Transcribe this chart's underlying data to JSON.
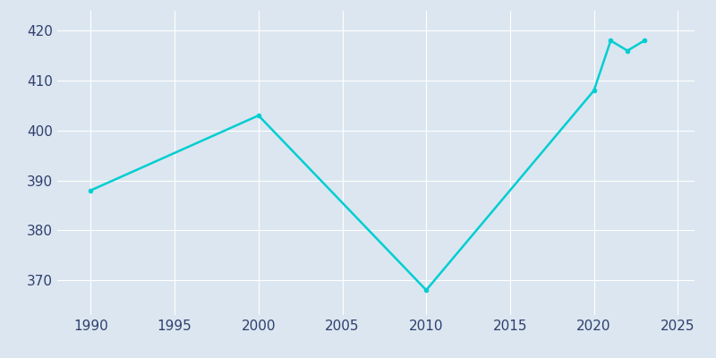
{
  "years": [
    1990,
    2000,
    2010,
    2020,
    2021,
    2022,
    2023
  ],
  "population": [
    388,
    403,
    368,
    408,
    418,
    416,
    418
  ],
  "line_color": "#00CED1",
  "bg_color": "#dce6f0",
  "xlim": [
    1988,
    2026
  ],
  "ylim": [
    363,
    424
  ],
  "xticks": [
    1990,
    1995,
    2000,
    2005,
    2010,
    2015,
    2020,
    2025
  ],
  "yticks": [
    370,
    380,
    390,
    400,
    410,
    420
  ],
  "line_width": 1.8,
  "marker": "o",
  "marker_size": 3,
  "tick_labelsize": 11,
  "tick_labelcolor": "#2e3f6e"
}
